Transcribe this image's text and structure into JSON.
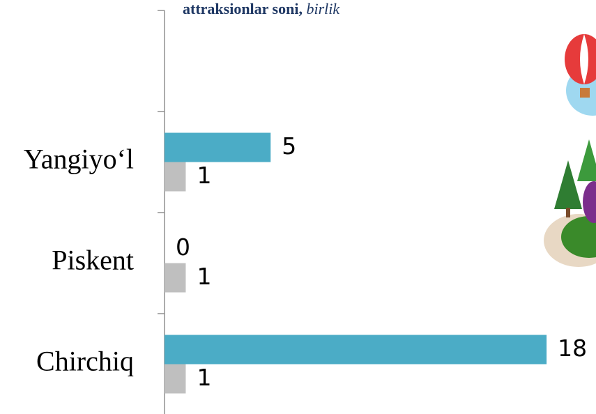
{
  "chart_data": {
    "type": "bar",
    "orientation": "horizontal",
    "title": "attraksionlar soni,",
    "subtitle": "birlik",
    "categories": [
      null,
      "Yangiyo‘l",
      "Piskent",
      "Chirchiq"
    ],
    "series": [
      {
        "color": "#4bacc6",
        "values": [
          null,
          5,
          0,
          18
        ]
      },
      {
        "color": "#bfbfbf",
        "values": [
          null,
          1,
          1,
          1
        ]
      }
    ],
    "xlim": [
      0,
      20
    ],
    "grid": false
  }
}
